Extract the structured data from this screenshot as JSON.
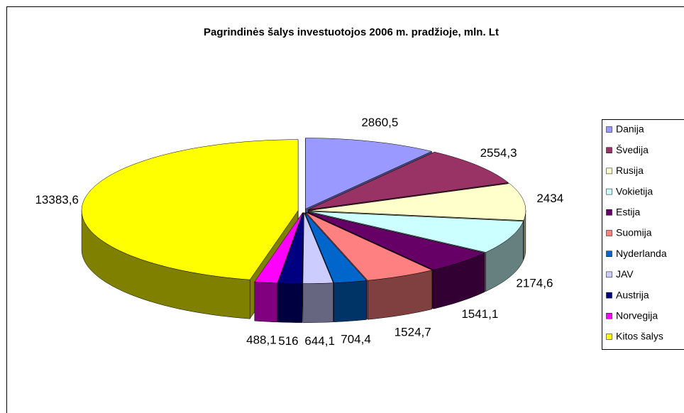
{
  "chart_data": {
    "type": "pie3d",
    "title": "Pagrindinės šalys investuotojos 2006 m. pradžioje, mln. Lt",
    "categories": [
      "Danija",
      "Švedija",
      "Rusija",
      "Vokietija",
      "Estija",
      "Suomija",
      "Nyderlanda",
      "JAV",
      "Austrija",
      "Norvegija",
      "Kitos šalys"
    ],
    "values": [
      2860.5,
      2554.3,
      2434,
      2174.6,
      1541.1,
      1524.7,
      704.4,
      644.1,
      516,
      488.1,
      13383.6
    ],
    "value_labels": [
      "2860,5",
      "2554,3",
      "2434",
      "2174,6",
      "1541,1",
      "1524,7",
      "704,4",
      "644,1",
      "516",
      "488,1",
      "13383,6"
    ],
    "colors": [
      "#9999ff",
      "#993366",
      "#ffffcc",
      "#ccffff",
      "#660066",
      "#ff8080",
      "#0066cc",
      "#ccccff",
      "#000080",
      "#ff00ff",
      "#ffff00"
    ],
    "legend": "right"
  }
}
